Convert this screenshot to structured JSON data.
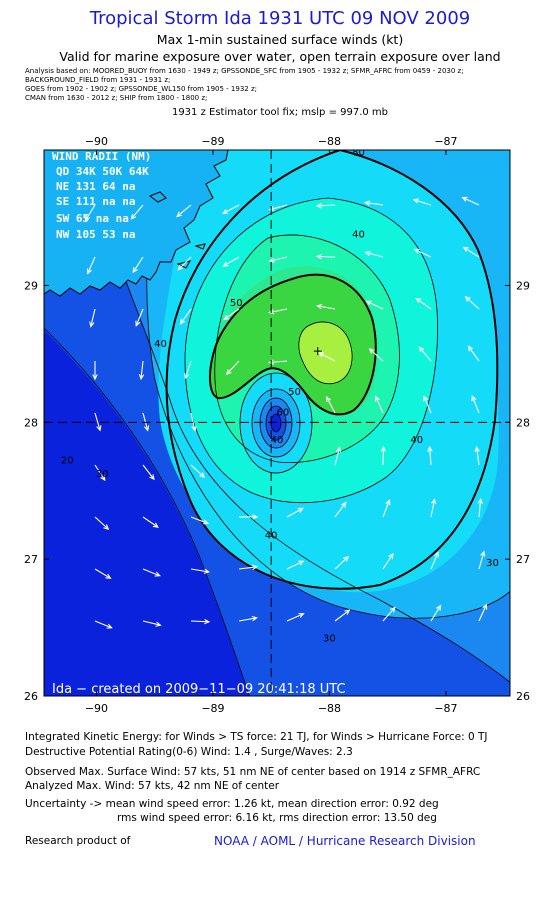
{
  "header": {
    "title": "Tropical Storm Ida 1931 UTC 09 NOV 2009",
    "subtitle_1": "Max 1-min sustained surface winds (kt)",
    "subtitle_2": "Valid for marine exposure over water, open terrain exposure over land",
    "sources": [
      "Analysis based on:  MOORED_BUOY from  1630 - 1949 z;  GPSSONDE_SFC from  1905 - 1932 z;  SFMR_AFRC from  0459 - 2030 z;",
      "BACKGROUND_FIELD from  1931 - 1931 z;",
      "GOES from  1902 - 1902 z;  GPSSONDE_WL150 from  1905 - 1932 z;",
      "CMAN from  1630 - 2012 z;  SHIP from  1800 - 1800 z;"
    ],
    "estimator": "1931 z Estimator tool fix; mslp = 997.0 mb"
  },
  "colors": {
    "title": "#1a1ad8",
    "noaa_link": "#1a1ad8",
    "contour_line": "#000000",
    "arrow": "#ffffff",
    "wind_bands": [
      "#0b22dc",
      "#1452e6",
      "#1a88f0",
      "#18b6f6",
      "#14dcf8",
      "#10f4dc",
      "#1cf4b0",
      "#2ee890",
      "#3ad642",
      "#a8f040"
    ]
  },
  "chart_data": {
    "type": "heatmap",
    "title": "Tropical Storm Ida 1931 UTC 09 NOV 2009",
    "variable": "Max 1-min sustained surface winds (kt)",
    "x_axis": {
      "ticks": [
        -90,
        -89,
        -88,
        -87
      ],
      "tick_labels": [
        "−90",
        "−89",
        "−88",
        "−87"
      ],
      "range": [
        -90.45,
        -86.45
      ]
    },
    "y_axis": {
      "ticks": [
        26,
        27,
        28,
        29
      ],
      "tick_labels": [
        "26",
        "27",
        "28",
        "29"
      ],
      "range": [
        26.0,
        29.99
      ]
    },
    "center": {
      "lon": -88.5,
      "lat": 28.0
    },
    "max_wind_location": {
      "lon": -88.1,
      "lat": 28.52
    },
    "contour_labels": [
      {
        "text": "20",
        "lon": -90.25,
        "lat": 27.7
      },
      {
        "text": "30",
        "lon": -89.95,
        "lat": 27.6
      },
      {
        "text": "30",
        "lon": -88.0,
        "lat": 26.4
      },
      {
        "text": "30",
        "lon": -86.6,
        "lat": 26.95
      },
      {
        "text": "40",
        "lon": -89.45,
        "lat": 28.55
      },
      {
        "text": "40",
        "lon": -88.5,
        "lat": 27.15
      },
      {
        "text": "40",
        "lon": -87.75,
        "lat": 29.35
      },
      {
        "text": "40",
        "lon": -87.25,
        "lat": 27.85
      },
      {
        "text": "40",
        "lon": -88.45,
        "lat": 27.85
      },
      {
        "text": "50",
        "lon": -88.8,
        "lat": 28.85
      },
      {
        "text": "50",
        "lon": -88.3,
        "lat": 28.2
      },
      {
        "text": "80",
        "lon": -87.75,
        "lat": 29.95
      },
      {
        "text": "60",
        "lon": -88.4,
        "lat": 28.05
      }
    ],
    "wind_radii": {
      "header": "WIND RADII (NM)",
      "columns": "QD 34K 50K 64K",
      "rows": [
        "NE 131  64  na",
        "SE 111  na  na",
        "SW  65  na  na",
        "NW 105  53  na"
      ]
    },
    "credit": "Ida − created on 2009−11−09 20:41:18 UTC"
  },
  "footer": {
    "ike": "Integrated Kinetic Energy:  for Winds > TS force: 21 TJ,  for Winds > Hurricane Force: 0 TJ",
    "dpr": "Destructive Potential Rating(0-6)   Wind: 1.4 , Surge/Waves: 2.3",
    "observed": "Observed Max. Surface Wind: 57 kts, 51 nm NE of center based on 1914 z SFMR_AFRC",
    "analyzed": "Analyzed Max. Wind: 57 kts, 42 nm NE of center",
    "uncertainty_1": "Uncertainty -> mean wind speed error: 1.26 kt,   mean direction error: 0.92 deg",
    "uncertainty_2": "rms wind speed error: 6.16 kt,   rms direction error: 13.50 deg",
    "research_label": "Research product of",
    "noaa": "NOAA / AOML / Hurricane Research Division"
  }
}
